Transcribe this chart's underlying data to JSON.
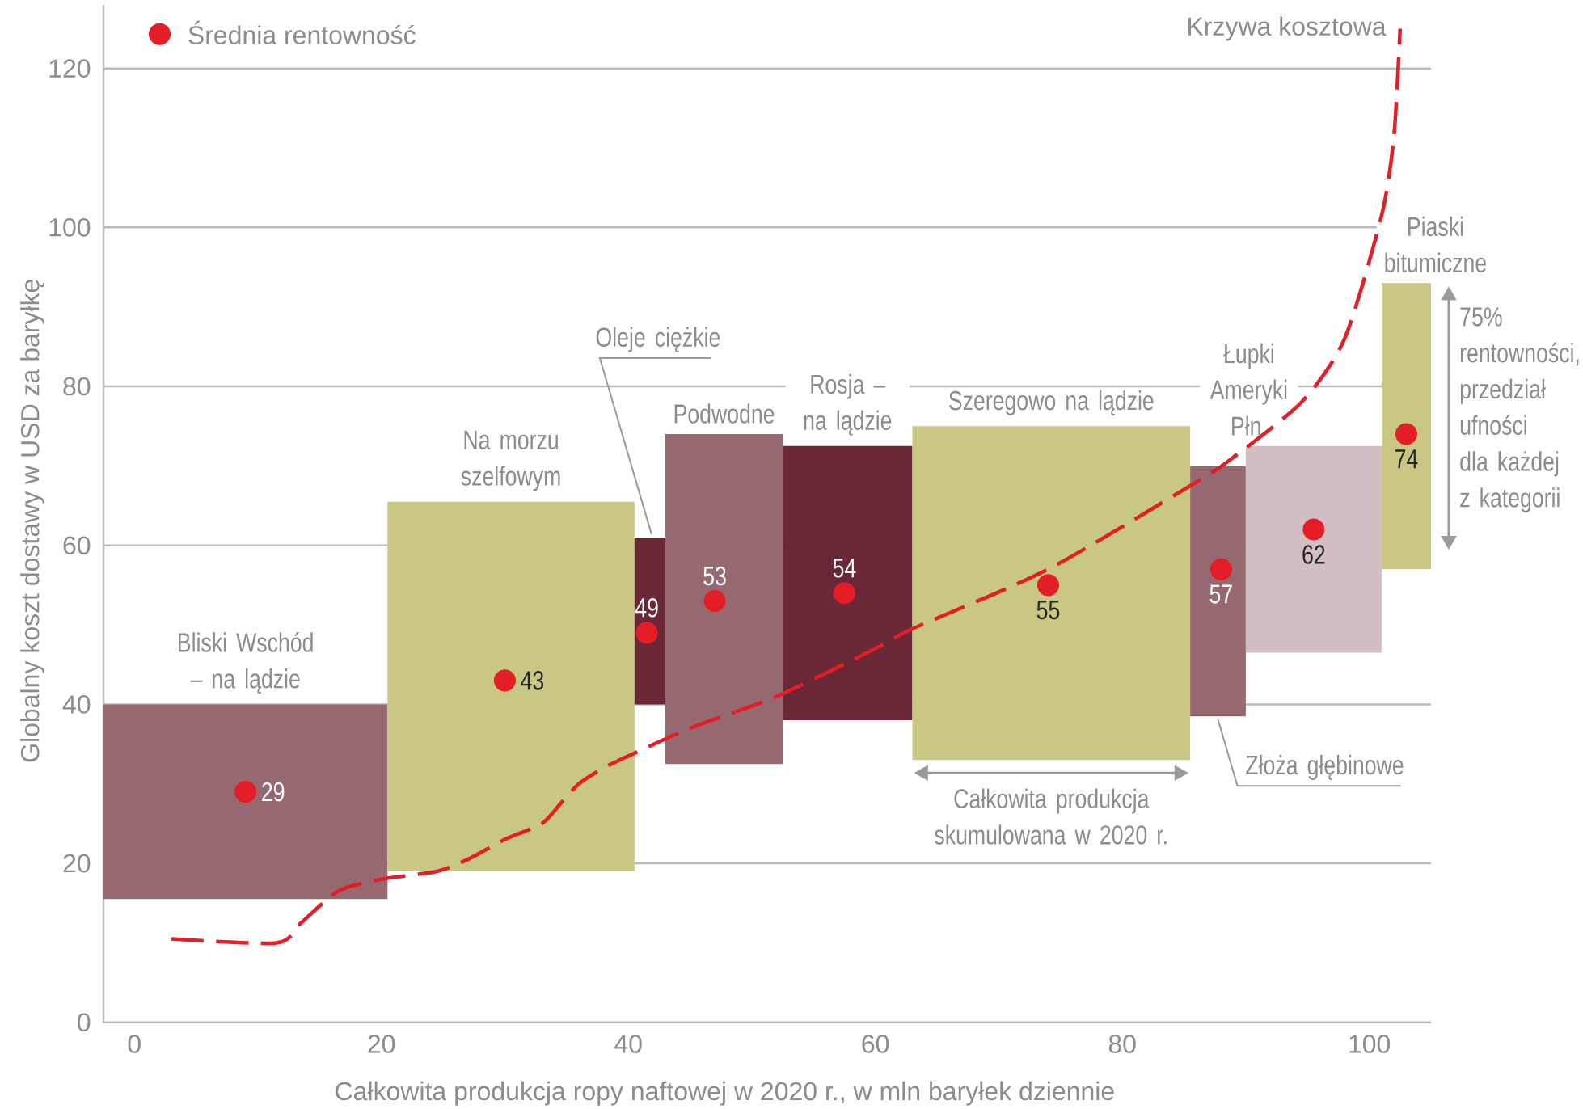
{
  "chart_data": {
    "type": "bar",
    "xlabel": "Całkowita produkcja ropy naftowej w 2020 r., w mln baryłek dziennie",
    "ylabel": "Globalny koszt dostawy w USD za baryłkę",
    "xlim": [
      -2.5,
      105
    ],
    "ylim": [
      0,
      128
    ],
    "xticks": [
      0,
      20,
      40,
      60,
      80,
      100
    ],
    "yticks": [
      0,
      20,
      40,
      60,
      80,
      100,
      120
    ],
    "grid": "y",
    "legend": "top left",
    "series": [
      {
        "x": [
          9,
          30.5,
          41.75,
          47.75,
          57.75,
          74.25,
          87.75,
          95.5,
          103
        ],
        "base": [
          15.5,
          19,
          40,
          32.5,
          38,
          33,
          38.5,
          46.5,
          57
        ],
        "values": [
          24.5,
          46.5,
          21,
          41.5,
          34.5,
          42,
          31.5,
          26,
          36
        ],
        "colors": [
          "#96686f",
          "#c8c884",
          "#6a2836",
          "#96686f",
          "#6a2836",
          "#c8c884",
          "#96686f",
          "#d3bfc3",
          "#c8c884"
        ]
      },
      {
        "type": "line",
        "name": "Krzywa kosztowa",
        "color": "#e41e26",
        "line_style": "dashed",
        "marker": "none",
        "x": [
          3,
          11.5,
          13.5,
          16.5,
          20,
          24.5,
          27,
          30,
          33,
          34.5,
          36,
          38,
          40,
          45,
          52,
          60,
          63,
          74,
          85.5,
          88.5,
          94.5,
          98,
          101,
          102,
          102.5
        ],
        "values": [
          10.5,
          10,
          12.5,
          16.5,
          18,
          19,
          20.5,
          23,
          25,
          27.5,
          30,
          32,
          33.5,
          37,
          41,
          47,
          49.5,
          57,
          67.5,
          70.5,
          78,
          86,
          101.5,
          111.5,
          125
        ]
      },
      {
        "type": "scatter",
        "name": "Średnia rentowność",
        "color": "#e41e26",
        "marker": "circle",
        "x": [
          9,
          30,
          41.5,
          47,
          57.5,
          74,
          88,
          95.5,
          103
        ],
        "values": [
          29,
          43,
          49,
          53,
          54,
          55,
          57,
          62,
          74
        ],
        "value_labels": [
          "29",
          "43",
          "49",
          "53",
          "54",
          "55",
          "57",
          "62",
          "74"
        ]
      }
    ],
    "annotations": [
      {
        "text": "Bliski Wschód – na lądzie",
        "x": 9,
        "y": 40
      },
      {
        "text": "Na morzu szelfowym",
        "x": 30.5,
        "y": 65.5
      },
      {
        "text": "Oleje ciężkie",
        "x": 41.75,
        "y": 61
      },
      {
        "text": "Podwodne",
        "x": 47.75,
        "y": 74
      },
      {
        "text": "Rosja – na lądzie",
        "x": 57.75,
        "y": 72.5
      },
      {
        "text": "Szeregowo na lądzie",
        "x": 74.25,
        "y": 75
      },
      {
        "text": "Złoża głębinowe",
        "x": 87.75,
        "y": 38.5
      },
      {
        "text": "Łupki Ameryki Płn.",
        "x": 95.5,
        "y": 72.5
      },
      {
        "text": "Piaski bitumiczne",
        "x": 103,
        "y": 93
      },
      {
        "text": "Całkowita produkcja skumulowana w 2020 r.",
        "x": 74.25,
        "y": 33
      },
      "75% rentowności, przedział ufności dla każdej z kategorii"
    ]
  }
}
